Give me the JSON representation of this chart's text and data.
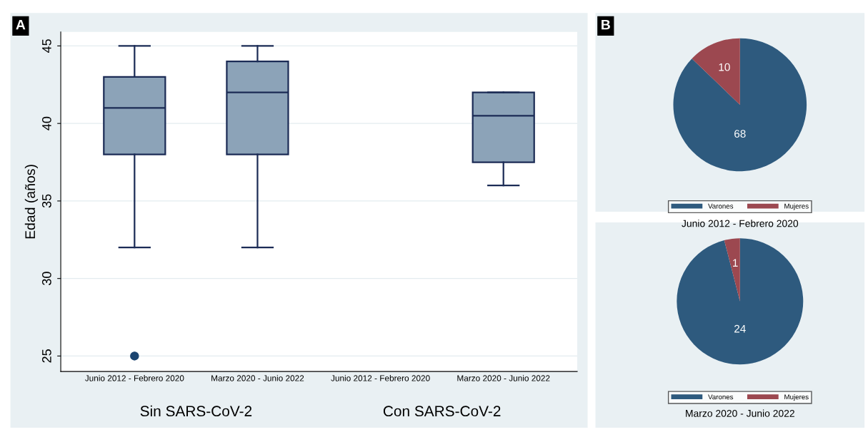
{
  "chart_data": [
    {
      "type": "box",
      "ylabel": "Edad (años)",
      "categories": [
        "Junio 2012 - Febrero 2020",
        "Marzo 2020 - Junio 2022",
        "Junio 2012 - Febrero 2020",
        "Marzo 2020 - Junio 2022"
      ],
      "boxes": [
        {
          "low": 32,
          "q1": 38,
          "median": 41,
          "q3": 43,
          "high": 45,
          "outliers": [
            25
          ]
        },
        {
          "low": 32,
          "q1": 38,
          "median": 42,
          "q3": 44,
          "high": 45
        },
        null,
        {
          "low": 36,
          "q1": 37.5,
          "median": 40.5,
          "q3": 42,
          "high": 42
        }
      ],
      "color": "#8ca3b8",
      "ylim": [
        24,
        45.9
      ],
      "yticks": [
        25,
        30,
        35,
        40,
        45
      ],
      "grid": "y",
      "annotations": [
        "A",
        "Sin SARS-CoV-2",
        "Con SARS-CoV-2"
      ]
    },
    {
      "type": "pie",
      "title": "Junio 2012 - Febrero 2020",
      "categories": [
        "Varones",
        "Mujeres"
      ],
      "values": [
        68,
        10
      ],
      "colors": [
        "#2e5a7e",
        "#9c4850"
      ],
      "data_labels": true,
      "legend": "bottom",
      "annotations": [
        "B"
      ]
    },
    {
      "type": "pie",
      "title": "Marzo 2020 - Junio 2022",
      "categories": [
        "Varones",
        "Mujeres"
      ],
      "values": [
        24,
        1
      ],
      "colors": [
        "#2e5a7e",
        "#9c4850"
      ],
      "data_labels": true,
      "legend": "bottom"
    }
  ]
}
